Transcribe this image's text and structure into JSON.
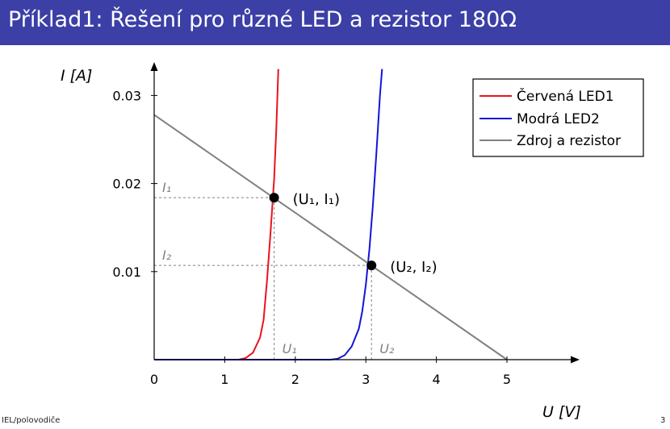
{
  "slide": {
    "title": "Příklad1: Řešení pro různé LED a rezistor 180Ω",
    "footer_left": "IEL/polovodiče",
    "footer_right": "3"
  },
  "chart_data": {
    "type": "line",
    "ylabel": "I [A]",
    "xlabel": "U [V]",
    "xlim": [
      0,
      5.6
    ],
    "ylim": [
      0,
      0.033
    ],
    "x_ticks": [
      "0",
      "1",
      "2",
      "3",
      "4",
      "5"
    ],
    "y_ticks": [
      "0.01",
      "0.02",
      "0.03"
    ],
    "grid": false,
    "legend": "top-right",
    "series": [
      {
        "name": "Červená LED1",
        "color": "#e8141c",
        "x": [
          0.8,
          1.0,
          1.2,
          1.3,
          1.4,
          1.5,
          1.55,
          1.6,
          1.65,
          1.7,
          1.73,
          1.76
        ],
        "y": [
          0.0,
          0.0,
          0.0,
          0.0002,
          0.0008,
          0.0025,
          0.0045,
          0.009,
          0.0145,
          0.0205,
          0.026,
          0.033
        ]
      },
      {
        "name": "Modrá LED2",
        "color": "#1414d8",
        "x": [
          2.2,
          2.5,
          2.6,
          2.7,
          2.8,
          2.9,
          2.95,
          3.0,
          3.05,
          3.1,
          3.15,
          3.2,
          3.23
        ],
        "y": [
          0.0,
          0.0,
          0.0001,
          0.0005,
          0.0015,
          0.0035,
          0.0055,
          0.0085,
          0.0125,
          0.0175,
          0.0235,
          0.03,
          0.033
        ]
      },
      {
        "name": "Zdroj a rezistor",
        "color": "#808080",
        "x": [
          0,
          5
        ],
        "y": [
          0.0278,
          0.0
        ]
      }
    ],
    "points": [
      {
        "label": "(U₁, I₁)",
        "x": 1.7,
        "y": 0.0184
      },
      {
        "label": "(U₂, I₂)",
        "x": 3.08,
        "y": 0.0107
      }
    ],
    "annotations": {
      "I1": "I₁",
      "I2": "I₂",
      "U1": "U₁",
      "U2": "U₂"
    }
  }
}
